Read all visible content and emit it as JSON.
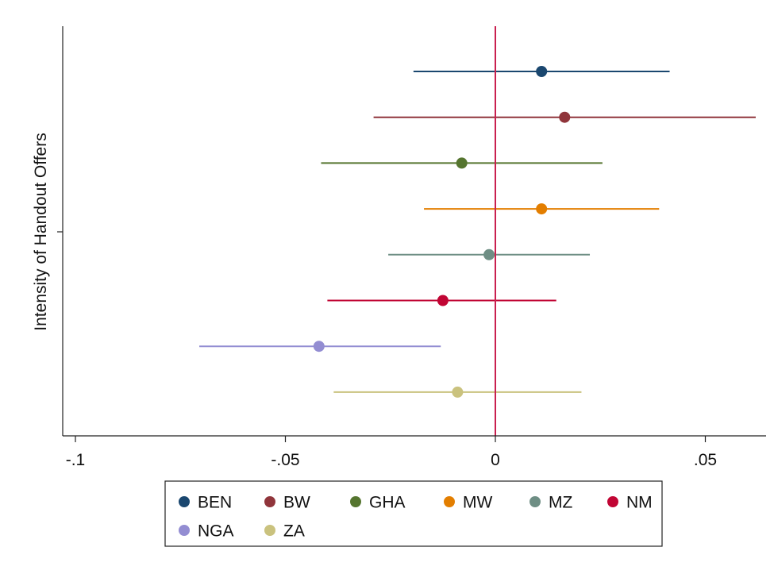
{
  "chart_data": {
    "type": "scatter",
    "style": "coefficient-plot-horizontal-error-bars",
    "title": "",
    "xlabel": "",
    "ylabel": "Intensity of Handout Offers",
    "xlim": [
      -0.1,
      0.065
    ],
    "xticks": [
      {
        "value": -0.1,
        "label": "-.1"
      },
      {
        "value": -0.05,
        "label": "-.05"
      },
      {
        "value": 0,
        "label": "0"
      },
      {
        "value": 0.05,
        "label": ".05"
      }
    ],
    "reference_line": {
      "x": 0,
      "color": "#c9204f"
    },
    "grid": false,
    "legend": {
      "position": "bottom",
      "columns": 6
    },
    "series": [
      {
        "name": "BEN",
        "color": "#1a476f",
        "estimate": 0.011,
        "ci": [
          -0.0195,
          0.0415
        ]
      },
      {
        "name": "BW",
        "color": "#90353b",
        "estimate": 0.0165,
        "ci": [
          -0.029,
          0.062
        ]
      },
      {
        "name": "GHA",
        "color": "#55752f",
        "estimate": -0.008,
        "ci": [
          -0.0415,
          0.0255
        ]
      },
      {
        "name": "MW",
        "color": "#e37e00",
        "estimate": 0.011,
        "ci": [
          -0.017,
          0.039
        ]
      },
      {
        "name": "MZ",
        "color": "#6e8e84",
        "estimate": -0.0015,
        "ci": [
          -0.0255,
          0.0225
        ]
      },
      {
        "name": "NM",
        "color": "#c10534",
        "estimate": -0.0125,
        "ci": [
          -0.04,
          0.0145
        ]
      },
      {
        "name": "NGA",
        "color": "#938dd2",
        "estimate": -0.042,
        "ci": [
          -0.0705,
          -0.013
        ]
      },
      {
        "name": "ZA",
        "color": "#cac27e",
        "estimate": -0.009,
        "ci": [
          -0.0385,
          0.0205
        ]
      }
    ]
  }
}
